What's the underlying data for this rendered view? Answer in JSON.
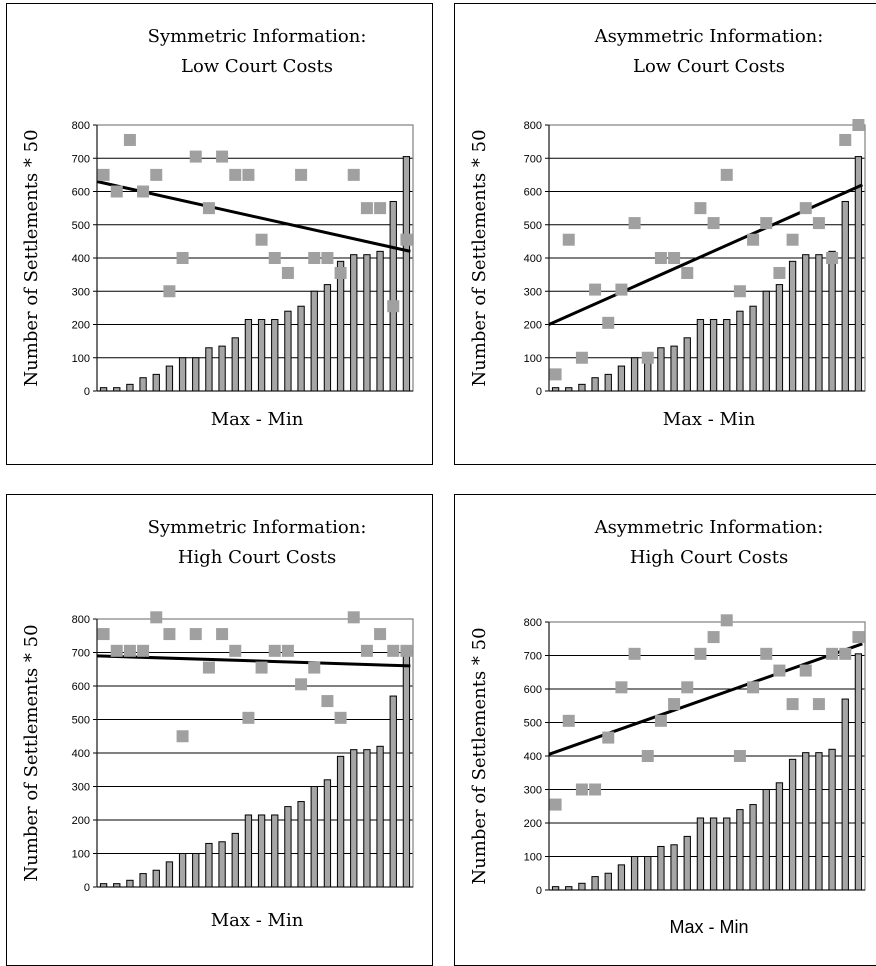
{
  "chart_data": [
    {
      "type": "bar",
      "title": "Symmetric Information:",
      "subtitle": "Low Court Costs",
      "xlabel": "Max - Min",
      "ylabel": "Number of Settlements * 50",
      "ylim": [
        0,
        800
      ],
      "yticks": [
        "0",
        "100",
        "200",
        "300",
        "400",
        "500",
        "600",
        "700",
        "800"
      ],
      "grid": true,
      "bars": [
        10,
        10,
        20,
        40,
        50,
        75,
        100,
        100,
        130,
        135,
        160,
        215,
        215,
        215,
        240,
        255,
        300,
        320,
        390,
        410,
        410,
        420,
        570,
        705
      ],
      "points": [
        650,
        600,
        755,
        600,
        650,
        300,
        400,
        705,
        550,
        705,
        650,
        650,
        455,
        400,
        355,
        650,
        400,
        400,
        355,
        650,
        550,
        550,
        255,
        455
      ],
      "trend": [
        630,
        420
      ]
    },
    {
      "type": "bar",
      "title": "Asymmetric Information:",
      "subtitle": "Low Court Costs",
      "xlabel": "Max - Min",
      "ylabel": "Number of Settlements * 50",
      "ylim": [
        0,
        800
      ],
      "yticks": [
        "0",
        "100",
        "200",
        "300",
        "400",
        "500",
        "600",
        "700",
        "800"
      ],
      "grid": true,
      "bars": [
        10,
        10,
        20,
        40,
        50,
        75,
        100,
        100,
        130,
        135,
        160,
        215,
        215,
        215,
        240,
        255,
        300,
        320,
        390,
        410,
        410,
        420,
        570,
        705
      ],
      "points": [
        50,
        455,
        100,
        305,
        205,
        305,
        505,
        100,
        400,
        400,
        355,
        550,
        505,
        650,
        300,
        455,
        505,
        355,
        455,
        550,
        505,
        400,
        755,
        800
      ],
      "trend": [
        200,
        620
      ]
    },
    {
      "type": "bar",
      "title": "Symmetric Information:",
      "subtitle": "High Court Costs",
      "xlabel": "Max - Min",
      "ylabel": "Number of Settlements * 50",
      "ylim": [
        0,
        800
      ],
      "yticks": [
        "0",
        "100",
        "200",
        "300",
        "400",
        "500",
        "600",
        "700",
        "800"
      ],
      "grid": true,
      "bars": [
        10,
        10,
        20,
        40,
        50,
        75,
        100,
        100,
        130,
        135,
        160,
        215,
        215,
        215,
        240,
        255,
        300,
        320,
        390,
        410,
        410,
        420,
        570,
        705
      ],
      "points": [
        755,
        705,
        705,
        705,
        805,
        755,
        450,
        755,
        655,
        755,
        705,
        505,
        655,
        705,
        705,
        605,
        655,
        555,
        505,
        805,
        705,
        755,
        705,
        705
      ],
      "trend": [
        690,
        660
      ]
    },
    {
      "type": "bar",
      "title": "Asymmetric Information:",
      "subtitle": "High Court Costs",
      "xlabel": "Max - Min",
      "ylabel": "Number of Settlements * 50",
      "ylim": [
        0,
        800
      ],
      "yticks": [
        "0",
        "100",
        "200",
        "300",
        "400",
        "500",
        "600",
        "700",
        "800"
      ],
      "grid": true,
      "bars": [
        10,
        10,
        20,
        40,
        50,
        75,
        100,
        100,
        130,
        135,
        160,
        215,
        215,
        215,
        240,
        255,
        300,
        320,
        390,
        410,
        410,
        420,
        570,
        705
      ],
      "points": [
        255,
        505,
        300,
        300,
        455,
        605,
        705,
        400,
        505,
        555,
        605,
        705,
        755,
        805,
        400,
        605,
        705,
        655,
        555,
        655,
        555,
        705,
        705,
        755
      ],
      "trend": [
        405,
        735
      ]
    }
  ]
}
